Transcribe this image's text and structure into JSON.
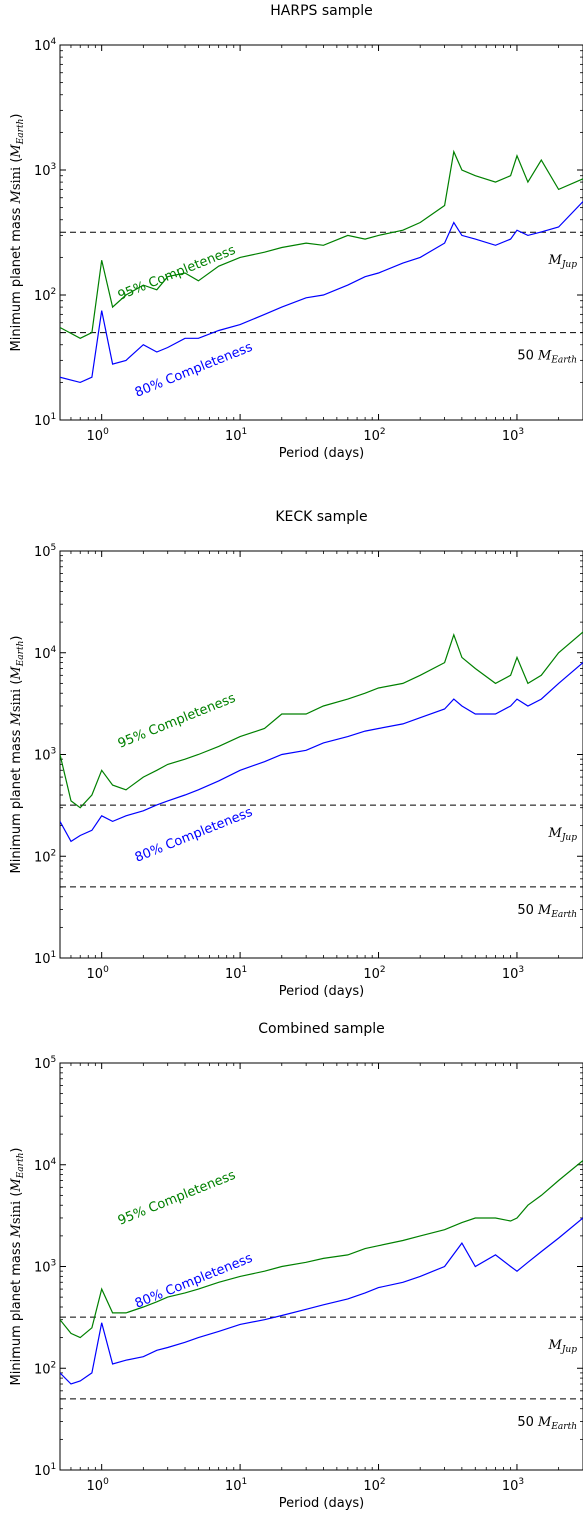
{
  "chart_data": [
    {
      "type": "line",
      "title": "HARPS sample",
      "xlabel": "Period (days)",
      "ylabel": "Minimum planet mass M sini (M_Earth)",
      "xscale": "log",
      "yscale": "log",
      "xlim": [
        0.5,
        3000
      ],
      "ylim": [
        10,
        10000
      ],
      "xtick_values": [
        1,
        10,
        100,
        1000
      ],
      "ytick_values": [
        10,
        100,
        1000,
        10000
      ],
      "series": [
        {
          "annotation": "95% Completeness",
          "color": "#008000",
          "x": [
            0.5,
            0.7,
            0.85,
            1.0,
            1.2,
            1.5,
            2,
            2.5,
            3,
            4,
            5,
            7,
            10,
            15,
            20,
            30,
            40,
            60,
            80,
            100,
            150,
            200,
            300,
            350,
            400,
            500,
            700,
            900,
            1000,
            1200,
            1500,
            2000,
            3000
          ],
          "y": [
            55,
            45,
            50,
            190,
            80,
            100,
            120,
            110,
            140,
            150,
            130,
            170,
            200,
            220,
            240,
            260,
            250,
            300,
            280,
            300,
            330,
            380,
            520,
            1400,
            1000,
            900,
            800,
            900,
            1300,
            800,
            1200,
            700,
            850
          ]
        },
        {
          "annotation": "80% Completeness",
          "color": "#0000ff",
          "x": [
            0.5,
            0.7,
            0.85,
            1.0,
            1.2,
            1.5,
            2,
            2.5,
            3,
            4,
            5,
            7,
            10,
            15,
            20,
            30,
            40,
            60,
            80,
            100,
            150,
            200,
            300,
            350,
            400,
            500,
            700,
            900,
            1000,
            1200,
            1500,
            2000,
            3000
          ],
          "y": [
            22,
            20,
            22,
            75,
            28,
            30,
            40,
            35,
            38,
            45,
            45,
            52,
            58,
            70,
            80,
            95,
            100,
            120,
            140,
            150,
            180,
            200,
            260,
            380,
            300,
            280,
            250,
            280,
            330,
            300,
            320,
            350,
            560
          ]
        }
      ],
      "reference_lines": [
        {
          "y": 318,
          "label_symbol": "M",
          "label_sub": "Jup"
        },
        {
          "y": 50,
          "label_prefix": "50 ",
          "label_symbol": "M",
          "label_sub": "Earth"
        }
      ]
    },
    {
      "type": "line",
      "title": "KECK sample",
      "xlabel": "Period (days)",
      "ylabel": "Minimum planet mass M sini (M_Earth)",
      "xscale": "log",
      "yscale": "log",
      "xlim": [
        0.5,
        3000
      ],
      "ylim": [
        10,
        100000
      ],
      "xtick_values": [
        1,
        10,
        100,
        1000
      ],
      "ytick_values": [
        10,
        100,
        1000,
        10000,
        100000
      ],
      "series": [
        {
          "annotation": "95% Completeness",
          "color": "#008000",
          "x": [
            0.5,
            0.6,
            0.7,
            0.85,
            1.0,
            1.2,
            1.5,
            2,
            2.5,
            3,
            4,
            5,
            7,
            10,
            15,
            20,
            30,
            40,
            60,
            80,
            100,
            150,
            200,
            300,
            350,
            400,
            500,
            700,
            900,
            1000,
            1200,
            1500,
            2000,
            3000
          ],
          "y": [
            1000,
            350,
            300,
            400,
            700,
            500,
            450,
            600,
            700,
            800,
            900,
            1000,
            1200,
            1500,
            1800,
            2500,
            2500,
            3000,
            3500,
            4000,
            4500,
            5000,
            6000,
            8000,
            15000,
            9000,
            7000,
            5000,
            6000,
            9000,
            5000,
            6000,
            10000,
            16000
          ]
        },
        {
          "annotation": "80% Completeness",
          "color": "#0000ff",
          "x": [
            0.5,
            0.6,
            0.7,
            0.85,
            1.0,
            1.2,
            1.5,
            2,
            2.5,
            3,
            4,
            5,
            7,
            10,
            15,
            20,
            30,
            40,
            60,
            80,
            100,
            150,
            200,
            300,
            350,
            400,
            500,
            700,
            900,
            1000,
            1200,
            1500,
            2000,
            3000
          ],
          "y": [
            220,
            140,
            160,
            180,
            250,
            220,
            250,
            280,
            320,
            350,
            400,
            450,
            550,
            700,
            850,
            1000,
            1100,
            1300,
            1500,
            1700,
            1800,
            2000,
            2300,
            2800,
            3500,
            3000,
            2500,
            2500,
            3000,
            3500,
            3000,
            3500,
            5000,
            8000
          ]
        }
      ],
      "reference_lines": [
        {
          "y": 318,
          "label_symbol": "M",
          "label_sub": "Jup"
        },
        {
          "y": 50,
          "label_prefix": "50 ",
          "label_symbol": "M",
          "label_sub": "Earth"
        }
      ]
    },
    {
      "type": "line",
      "title": "Combined sample",
      "xlabel": "Period (days)",
      "ylabel": "Minimum planet mass M sini (M_Earth)",
      "xscale": "log",
      "yscale": "log",
      "xlim": [
        0.5,
        3000
      ],
      "ylim": [
        10,
        100000
      ],
      "xtick_values": [
        1,
        10,
        100,
        1000
      ],
      "ytick_values": [
        10,
        100,
        1000,
        10000,
        100000
      ],
      "series": [
        {
          "annotation": "95% Completeness",
          "color": "#008000",
          "x": [
            0.5,
            0.6,
            0.7,
            0.85,
            1.0,
            1.2,
            1.5,
            2,
            2.5,
            3,
            4,
            5,
            7,
            10,
            15,
            20,
            30,
            40,
            60,
            80,
            100,
            150,
            200,
            300,
            400,
            500,
            700,
            900,
            1000,
            1200,
            1500,
            2000,
            3000
          ],
          "y": [
            300,
            220,
            200,
            250,
            600,
            350,
            350,
            400,
            450,
            500,
            550,
            600,
            700,
            800,
            900,
            1000,
            1100,
            1200,
            1300,
            1500,
            1600,
            1800,
            2000,
            2300,
            2700,
            3000,
            3000,
            2800,
            3000,
            4000,
            5000,
            7000,
            11000
          ]
        },
        {
          "annotation": "80% Completeness",
          "color": "#0000ff",
          "x": [
            0.5,
            0.6,
            0.7,
            0.85,
            1.0,
            1.2,
            1.5,
            2,
            2.5,
            3,
            4,
            5,
            7,
            10,
            15,
            20,
            30,
            40,
            60,
            80,
            100,
            150,
            200,
            300,
            400,
            500,
            700,
            900,
            1000,
            1200,
            1500,
            2000,
            3000
          ],
          "y": [
            90,
            70,
            75,
            90,
            280,
            110,
            120,
            130,
            150,
            160,
            180,
            200,
            230,
            270,
            300,
            330,
            380,
            420,
            480,
            550,
            620,
            700,
            800,
            1000,
            1700,
            1000,
            1300,
            1000,
            900,
            1100,
            1400,
            1900,
            3000
          ]
        }
      ],
      "reference_lines": [
        {
          "y": 318,
          "label_symbol": "M",
          "label_sub": "Jup"
        },
        {
          "y": 50,
          "label_prefix": "50 ",
          "label_symbol": "M",
          "label_sub": "Earth"
        }
      ]
    }
  ]
}
